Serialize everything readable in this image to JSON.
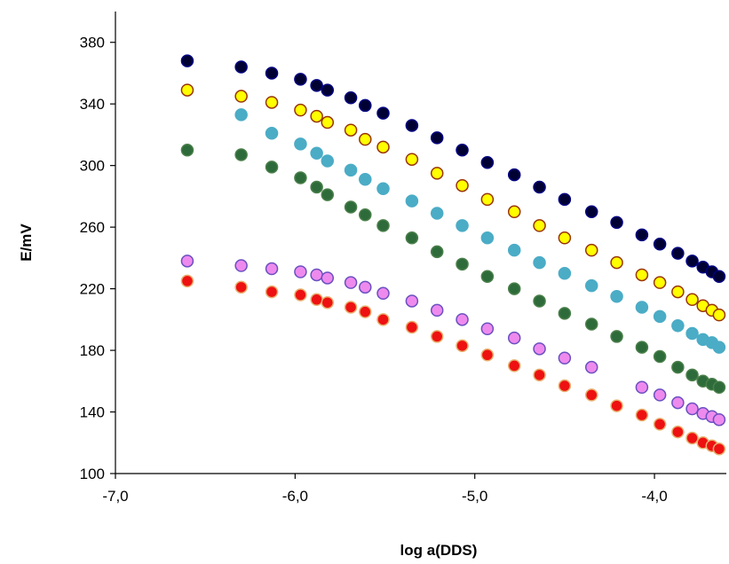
{
  "chart_data": {
    "type": "scatter",
    "title": "",
    "xlabel": "log a(DDS)",
    "ylabel": "E/mV",
    "xlim": [
      -7.0,
      -3.6
    ],
    "ylim": [
      100,
      400
    ],
    "xticks": [
      -7.0,
      -6.0,
      -5.0,
      -4.0
    ],
    "xtick_labels": [
      "-7,0",
      "-6,0",
      "-5,0",
      "-4,0"
    ],
    "yticks": [
      100,
      140,
      180,
      220,
      260,
      300,
      340,
      380
    ],
    "ytick_labels": [
      "100",
      "140",
      "180",
      "220",
      "260",
      "300",
      "340",
      "380"
    ],
    "grid": false,
    "legend": "none",
    "series": [
      {
        "fill": "#000033",
        "stroke": "#000080",
        "points": [
          [
            -6.6,
            368
          ],
          [
            -6.3,
            364
          ],
          [
            -6.13,
            360
          ],
          [
            -5.97,
            356
          ],
          [
            -5.88,
            352
          ],
          [
            -5.82,
            349
          ],
          [
            -5.69,
            344
          ],
          [
            -5.61,
            339
          ],
          [
            -5.51,
            334
          ],
          [
            -5.35,
            326
          ],
          [
            -5.21,
            318
          ],
          [
            -5.07,
            310
          ],
          [
            -4.93,
            302
          ],
          [
            -4.78,
            294
          ],
          [
            -4.64,
            286
          ],
          [
            -4.5,
            278
          ],
          [
            -4.35,
            270
          ],
          [
            -4.21,
            263
          ],
          [
            -4.07,
            255
          ],
          [
            -3.97,
            249
          ],
          [
            -3.87,
            243
          ],
          [
            -3.79,
            238
          ],
          [
            -3.73,
            234
          ],
          [
            -3.68,
            231
          ],
          [
            -3.64,
            228
          ]
        ]
      },
      {
        "fill": "#ffff00",
        "stroke": "#993300",
        "points": [
          [
            -6.6,
            349
          ],
          [
            -6.3,
            345
          ],
          [
            -6.13,
            341
          ],
          [
            -5.97,
            336
          ],
          [
            -5.88,
            332
          ],
          [
            -5.82,
            328
          ],
          [
            -5.69,
            323
          ],
          [
            -5.61,
            317
          ],
          [
            -5.51,
            312
          ],
          [
            -5.35,
            304
          ],
          [
            -5.21,
            295
          ],
          [
            -5.07,
            287
          ],
          [
            -4.93,
            278
          ],
          [
            -4.78,
            270
          ],
          [
            -4.64,
            261
          ],
          [
            -4.5,
            253
          ],
          [
            -4.35,
            245
          ],
          [
            -4.21,
            237
          ],
          [
            -4.07,
            229
          ],
          [
            -3.97,
            224
          ],
          [
            -3.87,
            218
          ],
          [
            -3.79,
            213
          ],
          [
            -3.73,
            209
          ],
          [
            -3.68,
            206
          ],
          [
            -3.64,
            203
          ]
        ]
      },
      {
        "fill": "#4bacc6",
        "stroke": "#4bacc6",
        "points": [
          [
            -6.3,
            333
          ],
          [
            -6.13,
            321
          ],
          [
            -5.97,
            314
          ],
          [
            -5.88,
            308
          ],
          [
            -5.82,
            303
          ],
          [
            -5.69,
            297
          ],
          [
            -5.61,
            291
          ],
          [
            -5.51,
            285
          ],
          [
            -5.35,
            277
          ],
          [
            -5.21,
            269
          ],
          [
            -5.07,
            261
          ],
          [
            -4.93,
            253
          ],
          [
            -4.78,
            245
          ],
          [
            -4.64,
            237
          ],
          [
            -4.5,
            230
          ],
          [
            -4.35,
            222
          ],
          [
            -4.21,
            215
          ],
          [
            -4.07,
            208
          ],
          [
            -3.97,
            202
          ],
          [
            -3.87,
            196
          ],
          [
            -3.79,
            191
          ],
          [
            -3.73,
            187
          ],
          [
            -3.68,
            185
          ],
          [
            -3.64,
            182
          ]
        ]
      },
      {
        "fill": "#2e6b3a",
        "stroke": "#4a7f4a",
        "points": [
          [
            -6.6,
            310
          ],
          [
            -6.3,
            307
          ],
          [
            -6.13,
            299
          ],
          [
            -5.97,
            292
          ],
          [
            -5.88,
            286
          ],
          [
            -5.82,
            281
          ],
          [
            -5.69,
            273
          ],
          [
            -5.61,
            268
          ],
          [
            -5.51,
            261
          ],
          [
            -5.35,
            253
          ],
          [
            -5.21,
            244
          ],
          [
            -5.07,
            236
          ],
          [
            -4.93,
            228
          ],
          [
            -4.78,
            220
          ],
          [
            -4.64,
            212
          ],
          [
            -4.5,
            204
          ],
          [
            -4.35,
            197
          ],
          [
            -4.21,
            189
          ],
          [
            -4.07,
            182
          ],
          [
            -3.97,
            176
          ],
          [
            -3.87,
            169
          ],
          [
            -3.79,
            164
          ],
          [
            -3.73,
            160
          ],
          [
            -3.68,
            158
          ],
          [
            -3.64,
            156
          ]
        ]
      },
      {
        "fill": "#ee8aee",
        "stroke": "#6a50c0",
        "points": [
          [
            -6.6,
            238
          ],
          [
            -6.3,
            235
          ],
          [
            -6.13,
            233
          ],
          [
            -5.97,
            231
          ],
          [
            -5.88,
            229
          ],
          [
            -5.82,
            227
          ],
          [
            -5.69,
            224
          ],
          [
            -5.61,
            221
          ],
          [
            -5.51,
            217
          ],
          [
            -5.35,
            212
          ],
          [
            -5.21,
            206
          ],
          [
            -5.07,
            200
          ],
          [
            -4.93,
            194
          ],
          [
            -4.78,
            188
          ],
          [
            -4.64,
            181
          ],
          [
            -4.5,
            175
          ],
          [
            -4.35,
            169
          ],
          [
            -4.07,
            156
          ],
          [
            -3.97,
            151
          ],
          [
            -3.87,
            146
          ],
          [
            -3.79,
            142
          ],
          [
            -3.73,
            139
          ],
          [
            -3.68,
            137
          ],
          [
            -3.64,
            135
          ]
        ]
      },
      {
        "fill": "#ee1111",
        "stroke": "#e8b070",
        "points": [
          [
            -6.6,
            225
          ],
          [
            -6.3,
            221
          ],
          [
            -6.13,
            218
          ],
          [
            -5.97,
            216
          ],
          [
            -5.88,
            213
          ],
          [
            -5.82,
            211
          ],
          [
            -5.69,
            208
          ],
          [
            -5.61,
            205
          ],
          [
            -5.51,
            200
          ],
          [
            -5.35,
            195
          ],
          [
            -5.21,
            189
          ],
          [
            -5.07,
            183
          ],
          [
            -4.93,
            177
          ],
          [
            -4.78,
            170
          ],
          [
            -4.64,
            164
          ],
          [
            -4.5,
            157
          ],
          [
            -4.35,
            151
          ],
          [
            -4.21,
            144
          ],
          [
            -4.07,
            138
          ],
          [
            -3.97,
            132
          ],
          [
            -3.87,
            127
          ],
          [
            -3.79,
            123
          ],
          [
            -3.73,
            120
          ],
          [
            -3.68,
            118
          ],
          [
            -3.64,
            116
          ]
        ]
      }
    ]
  }
}
